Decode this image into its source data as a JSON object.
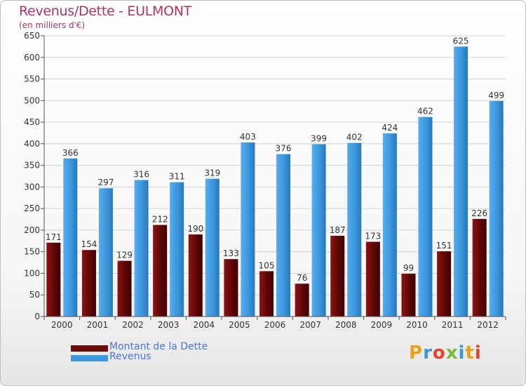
{
  "chart_data": {
    "type": "bar",
    "title": "Revenus/Dette - EULMONT",
    "subtitle": "(en milliers d'€)",
    "categories": [
      "2000",
      "2001",
      "2002",
      "2003",
      "2004",
      "2005",
      "2006",
      "2007",
      "2008",
      "2009",
      "2010",
      "2011",
      "2012"
    ],
    "series": [
      {
        "name": "Montant de la Dette",
        "color": "#6b0a0a",
        "values": [
          171,
          154,
          129,
          212,
          190,
          133,
          105,
          76,
          187,
          173,
          99,
          151,
          226
        ]
      },
      {
        "name": "Revenus",
        "color": "#3c97dc",
        "values": [
          366,
          297,
          316,
          311,
          319,
          403,
          376,
          399,
          402,
          424,
          462,
          625,
          499
        ]
      }
    ],
    "ylim": [
      0,
      650
    ],
    "yticks": [
      0,
      50,
      100,
      150,
      200,
      250,
      300,
      350,
      400,
      450,
      500,
      550,
      600,
      650
    ],
    "grid": true,
    "legend": "bottom-left"
  },
  "logo": {
    "text": "Proxiti",
    "letter_colors": [
      "#e8a21a",
      "#3c97dc",
      "#e8402a",
      "#7ab83c",
      "#3c97dc",
      "#e8a21a",
      "#e8402a"
    ]
  }
}
